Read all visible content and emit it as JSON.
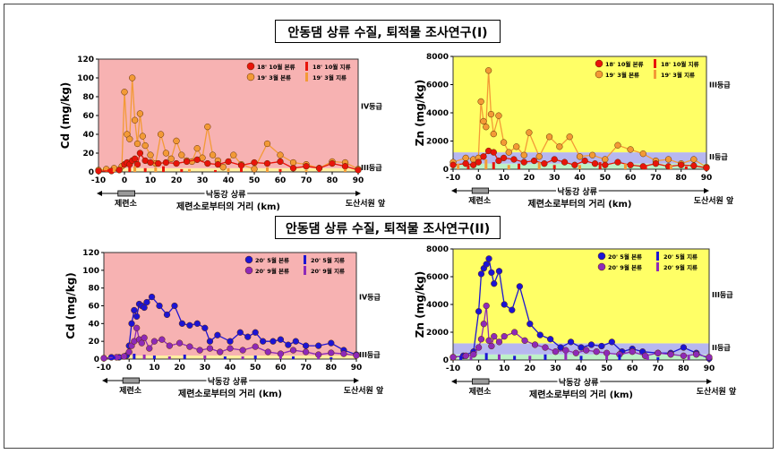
{
  "title_top": "안동댐 상류 수질, 퇴적물 조사연구(I)",
  "title_bottom": "안동댐 상류 수질, 퇴적물 조사연구(II)",
  "colors": {
    "pink_bg": "#f7b2b2",
    "yellow_bg": "#ffff66",
    "blue_band": "#b7b7f0",
    "green_band": "#bdf2c7",
    "cd_yellow_band": "#fff0a0",
    "red": "#e8140a",
    "orange": "#f39a36",
    "blue": "#1c14d4",
    "purple": "#8e2ab8"
  },
  "chart_data": [
    {
      "type": "line",
      "panel": "top-left",
      "ylabel": "Cd (mg/kg)",
      "xlim": [
        -10,
        90
      ],
      "ylim": [
        0,
        120
      ],
      "xticks": [
        "-10",
        "0",
        "10",
        "20",
        "30",
        "40",
        "50",
        "60",
        "70",
        "80",
        "90"
      ],
      "yticks": [
        "0",
        "20",
        "40",
        "60",
        "80",
        "100",
        "120"
      ],
      "grade_labels": [
        "IV등급",
        "III등급"
      ],
      "grade_label_values": [
        70,
        5
      ],
      "bands": [
        {
          "from": 0,
          "to": 4,
          "color": "cd_yellow_band"
        },
        {
          "from": 4,
          "to": 120,
          "color": "pink_bg"
        }
      ],
      "legend": [
        "18' 10월 본류",
        "18' 10월 지류",
        "19' 3월 본류",
        "19' 3월 지류"
      ],
      "series": [
        {
          "name": "19' 3월 본류",
          "color": "orange",
          "style": "line-marker",
          "x": [
            -10,
            -7,
            -4,
            -1,
            0,
            1,
            2,
            3,
            4,
            5,
            6,
            7,
            8,
            10,
            12,
            14,
            16,
            18,
            20,
            22,
            24,
            26,
            28,
            30,
            32,
            34,
            36,
            38,
            42,
            45,
            50,
            55,
            60,
            65,
            70,
            75,
            80,
            85,
            90
          ],
          "y": [
            2,
            3,
            4,
            6,
            85,
            40,
            35,
            100,
            55,
            30,
            62,
            38,
            28,
            18,
            9,
            40,
            20,
            14,
            33,
            18,
            12,
            11,
            25,
            15,
            48,
            18,
            12,
            5,
            18,
            8,
            3,
            30,
            18,
            10,
            8,
            4,
            11,
            10,
            3
          ]
        },
        {
          "name": "18' 10월 본류",
          "color": "red",
          "style": "line-marker",
          "x": [
            -10,
            -5,
            -2,
            0,
            1,
            2,
            3,
            4,
            5,
            6,
            8,
            10,
            13,
            16,
            20,
            24,
            28,
            32,
            36,
            40,
            45,
            50,
            55,
            60,
            65,
            70,
            75,
            80,
            85,
            90
          ],
          "y": [
            1,
            1,
            2,
            8,
            10,
            8,
            12,
            14,
            8,
            20,
            12,
            10,
            9,
            10,
            9,
            11,
            13,
            9,
            8,
            11,
            7,
            10,
            9,
            11,
            4,
            6,
            4,
            9,
            6,
            2
          ]
        },
        {
          "name": "18' 10월 지류",
          "color": "red",
          "style": "bar",
          "x": [
            -6,
            2,
            8,
            15,
            22,
            35,
            45,
            60,
            75
          ],
          "y": [
            3,
            5,
            4,
            6,
            3,
            2,
            5,
            3,
            4
          ]
        },
        {
          "name": "19' 3월 지류",
          "color": "orange",
          "style": "bar",
          "x": [
            -4,
            4,
            12,
            25,
            40,
            55,
            70,
            85
          ],
          "y": [
            4,
            6,
            5,
            3,
            4,
            5,
            2,
            3
          ]
        }
      ]
    },
    {
      "type": "line",
      "panel": "top-right",
      "ylabel": "Zn (mg/kg)",
      "xlim": [
        -10,
        90
      ],
      "ylim": [
        0,
        8000
      ],
      "xticks": [
        "-10",
        "0",
        "10",
        "20",
        "30",
        "40",
        "50",
        "60",
        "70",
        "80",
        "90"
      ],
      "yticks": [
        "0",
        "2000",
        "4000",
        "6000",
        "8000"
      ],
      "grade_labels": [
        "III등급",
        "II등급"
      ],
      "grade_label_values": [
        6000,
        900
      ],
      "bands": [
        {
          "from": 0,
          "to": 400,
          "color": "green_band"
        },
        {
          "from": 400,
          "to": 1200,
          "color": "blue_band"
        },
        {
          "from": 1200,
          "to": 8000,
          "color": "yellow_bg"
        }
      ],
      "legend": [
        "18' 10월 본류",
        "18' 10월 지류",
        "19' 3월 본류",
        "19' 3월 지류"
      ],
      "series": [
        {
          "name": "19' 3월 본류",
          "color": "orange",
          "style": "line-marker",
          "x": [
            -10,
            -5,
            -2,
            0,
            1,
            2,
            3,
            4,
            5,
            6,
            8,
            10,
            12,
            15,
            18,
            20,
            24,
            28,
            32,
            36,
            40,
            45,
            50,
            55,
            60,
            65,
            70,
            75,
            80,
            85,
            90
          ],
          "y": [
            500,
            800,
            700,
            800,
            4800,
            3400,
            3000,
            7000,
            3900,
            2500,
            3800,
            1900,
            1200,
            1600,
            1000,
            2600,
            900,
            2300,
            1600,
            2300,
            900,
            1000,
            700,
            1700,
            1400,
            1100,
            600,
            700,
            400,
            700,
            150
          ]
        },
        {
          "name": "18' 10월 본류",
          "color": "red",
          "style": "line-marker",
          "x": [
            -10,
            -5,
            -2,
            0,
            2,
            4,
            6,
            8,
            10,
            14,
            18,
            22,
            26,
            30,
            34,
            38,
            42,
            46,
            50,
            55,
            60,
            65,
            70,
            75,
            80,
            85,
            90
          ],
          "y": [
            300,
            400,
            300,
            500,
            900,
            1300,
            1200,
            600,
            800,
            700,
            500,
            600,
            400,
            700,
            500,
            300,
            600,
            400,
            300,
            500,
            300,
            200,
            400,
            200,
            300,
            250,
            100
          ]
        },
        {
          "name": "18' 10월 지류",
          "color": "red",
          "style": "bar",
          "x": [
            -4,
            6,
            16,
            30,
            48,
            66,
            82
          ],
          "y": [
            300,
            500,
            400,
            300,
            500,
            300,
            200
          ]
        },
        {
          "name": "19' 3월 지류",
          "color": "orange",
          "style": "bar",
          "x": [
            -8,
            3,
            12,
            24,
            40,
            58,
            76
          ],
          "y": [
            400,
            700,
            300,
            500,
            300,
            400,
            300
          ]
        }
      ]
    },
    {
      "type": "line",
      "panel": "bottom-left",
      "ylabel": "Cd (mg/kg)",
      "xlim": [
        -10,
        90
      ],
      "ylim": [
        0,
        120
      ],
      "xticks": [
        "-10",
        "0",
        "10",
        "20",
        "30",
        "40",
        "50",
        "60",
        "70",
        "80",
        "90"
      ],
      "yticks": [
        "0",
        "20",
        "40",
        "60",
        "80",
        "100",
        "120"
      ],
      "grade_labels": [
        "IV등급",
        "III등급"
      ],
      "grade_label_values": [
        70,
        5
      ],
      "bands": [
        {
          "from": 0,
          "to": 4,
          "color": "cd_yellow_band"
        },
        {
          "from": 4,
          "to": 120,
          "color": "pink_bg"
        }
      ],
      "legend": [
        "20' 5월 본류",
        "20' 5월 지류",
        "20' 9월 본류",
        "20' 9월 지류"
      ],
      "series": [
        {
          "name": "20' 5월 본류",
          "color": "blue",
          "style": "line-marker",
          "x": [
            -10,
            -7,
            -4,
            -1,
            0,
            1,
            2,
            3,
            4,
            5,
            6,
            7,
            9,
            12,
            15,
            18,
            21,
            24,
            27,
            30,
            32,
            35,
            40,
            44,
            47,
            50,
            53,
            57,
            60,
            63,
            66,
            70,
            75,
            80,
            85,
            90
          ],
          "y": [
            1,
            2,
            2,
            4,
            15,
            40,
            55,
            48,
            62,
            60,
            58,
            64,
            70,
            60,
            50,
            60,
            40,
            38,
            40,
            35,
            20,
            27,
            20,
            30,
            25,
            30,
            20,
            20,
            22,
            16,
            20,
            15,
            15,
            18,
            10,
            5
          ]
        },
        {
          "name": "20' 9월 본류",
          "color": "purple",
          "style": "line-marker",
          "x": [
            -10,
            -5,
            -2,
            0,
            1,
            2,
            3,
            4,
            5,
            6,
            8,
            10,
            13,
            16,
            20,
            24,
            28,
            32,
            36,
            40,
            45,
            50,
            55,
            60,
            65,
            70,
            75,
            80,
            85,
            90
          ],
          "y": [
            1,
            2,
            3,
            8,
            15,
            20,
            35,
            22,
            18,
            24,
            12,
            20,
            22,
            15,
            18,
            14,
            10,
            12,
            8,
            12,
            10,
            14,
            8,
            6,
            10,
            8,
            5,
            7,
            6,
            4
          ]
        },
        {
          "name": "20' 5월 지류",
          "color": "blue",
          "style": "bar",
          "x": [
            -6,
            2,
            10,
            22,
            38,
            50,
            65,
            80
          ],
          "y": [
            3,
            6,
            4,
            5,
            3,
            4,
            3,
            2
          ]
        },
        {
          "name": "20' 9월 지류",
          "color": "purple",
          "style": "bar",
          "x": [
            -4,
            6,
            16,
            30,
            45,
            60,
            75
          ],
          "y": [
            4,
            5,
            3,
            4,
            3,
            5,
            2
          ]
        }
      ]
    },
    {
      "type": "line",
      "panel": "bottom-right",
      "ylabel": "Zn (mg/kg)",
      "xlim": [
        -10,
        90
      ],
      "ylim": [
        0,
        8000
      ],
      "xticks": [
        "-10",
        "0",
        "10",
        "20",
        "30",
        "40",
        "50",
        "60",
        "70",
        "80",
        "90"
      ],
      "yticks": [
        "0",
        "2000",
        "4000",
        "6000",
        "8000"
      ],
      "grade_labels": [
        "III등급",
        "II등급"
      ],
      "grade_label_values": [
        4700,
        900
      ],
      "bands": [
        {
          "from": 0,
          "to": 400,
          "color": "green_band"
        },
        {
          "from": 400,
          "to": 1200,
          "color": "blue_band"
        },
        {
          "from": 1200,
          "to": 8000,
          "color": "yellow_bg"
        }
      ],
      "legend": [
        "20' 5월 본류",
        "20' 5월 지류",
        "20' 9월 본류",
        "20' 9월 지류"
      ],
      "series": [
        {
          "name": "20' 5월 본류",
          "color": "blue",
          "style": "line-marker",
          "x": [
            -10,
            -6,
            -2,
            0,
            1,
            2,
            3,
            4,
            5,
            6,
            8,
            10,
            13,
            16,
            20,
            24,
            28,
            32,
            36,
            40,
            44,
            48,
            52,
            56,
            60,
            64,
            70,
            75,
            80,
            85,
            90
          ],
          "y": [
            200,
            300,
            600,
            3500,
            6200,
            6600,
            6900,
            7300,
            6300,
            5500,
            6400,
            4000,
            3600,
            5300,
            2600,
            1800,
            1500,
            900,
            1300,
            900,
            1100,
            1000,
            1300,
            600,
            800,
            600,
            500,
            500,
            900,
            500,
            100
          ]
        },
        {
          "name": "20' 9월 본류",
          "color": "purple",
          "style": "line-marker",
          "x": [
            -10,
            -5,
            -2,
            0,
            1,
            2,
            3,
            4,
            5,
            6,
            8,
            10,
            14,
            18,
            22,
            26,
            30,
            34,
            38,
            42,
            46,
            50,
            55,
            60,
            65,
            70,
            75,
            80,
            85,
            90
          ],
          "y": [
            200,
            300,
            400,
            900,
            1500,
            2600,
            3900,
            1400,
            1000,
            1700,
            1300,
            1700,
            2000,
            1400,
            1100,
            900,
            600,
            700,
            500,
            700,
            600,
            500,
            400,
            600,
            300,
            500,
            400,
            300,
            400,
            200
          ]
        },
        {
          "name": "20' 5월 지류",
          "color": "blue",
          "style": "bar",
          "x": [
            -7,
            3,
            14,
            26,
            40,
            55,
            70
          ],
          "y": [
            300,
            500,
            300,
            400,
            300,
            400,
            200
          ]
        },
        {
          "name": "20' 9월 지류",
          "color": "purple",
          "style": "bar",
          "x": [
            -3,
            8,
            20,
            34,
            50,
            66,
            82
          ],
          "y": [
            300,
            400,
            300,
            500,
            300,
            300,
            300
          ]
        }
      ]
    }
  ],
  "annotations": {
    "upstream_label": "낙동강 상류",
    "start_label": "제련소",
    "distance_label": "제련소로부터의 거리 (km)",
    "end_label": "도산서원 앞"
  }
}
